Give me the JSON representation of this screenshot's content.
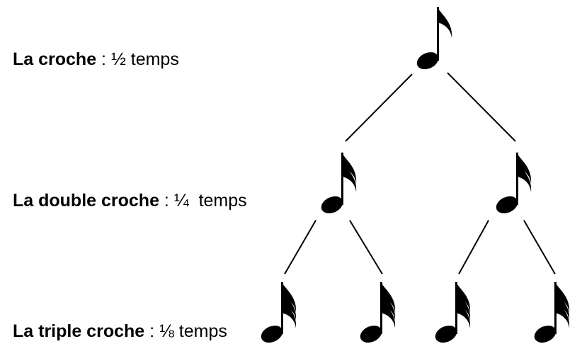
{
  "rows": [
    {
      "name": "La croche",
      "separator": " : ",
      "value": "½ temps",
      "flags": 1
    },
    {
      "name": "La double croche",
      "separator": " : ",
      "value": "¼  temps",
      "flags": 2
    },
    {
      "name": "La triple croche",
      "separator": " : ",
      "value": "⅛ temps",
      "flags": 3
    }
  ],
  "icons": {
    "eighth": "eighth-note-icon",
    "sixteenth": "sixteenth-note-icon",
    "thirty_second": "thirty-second-note-icon"
  }
}
